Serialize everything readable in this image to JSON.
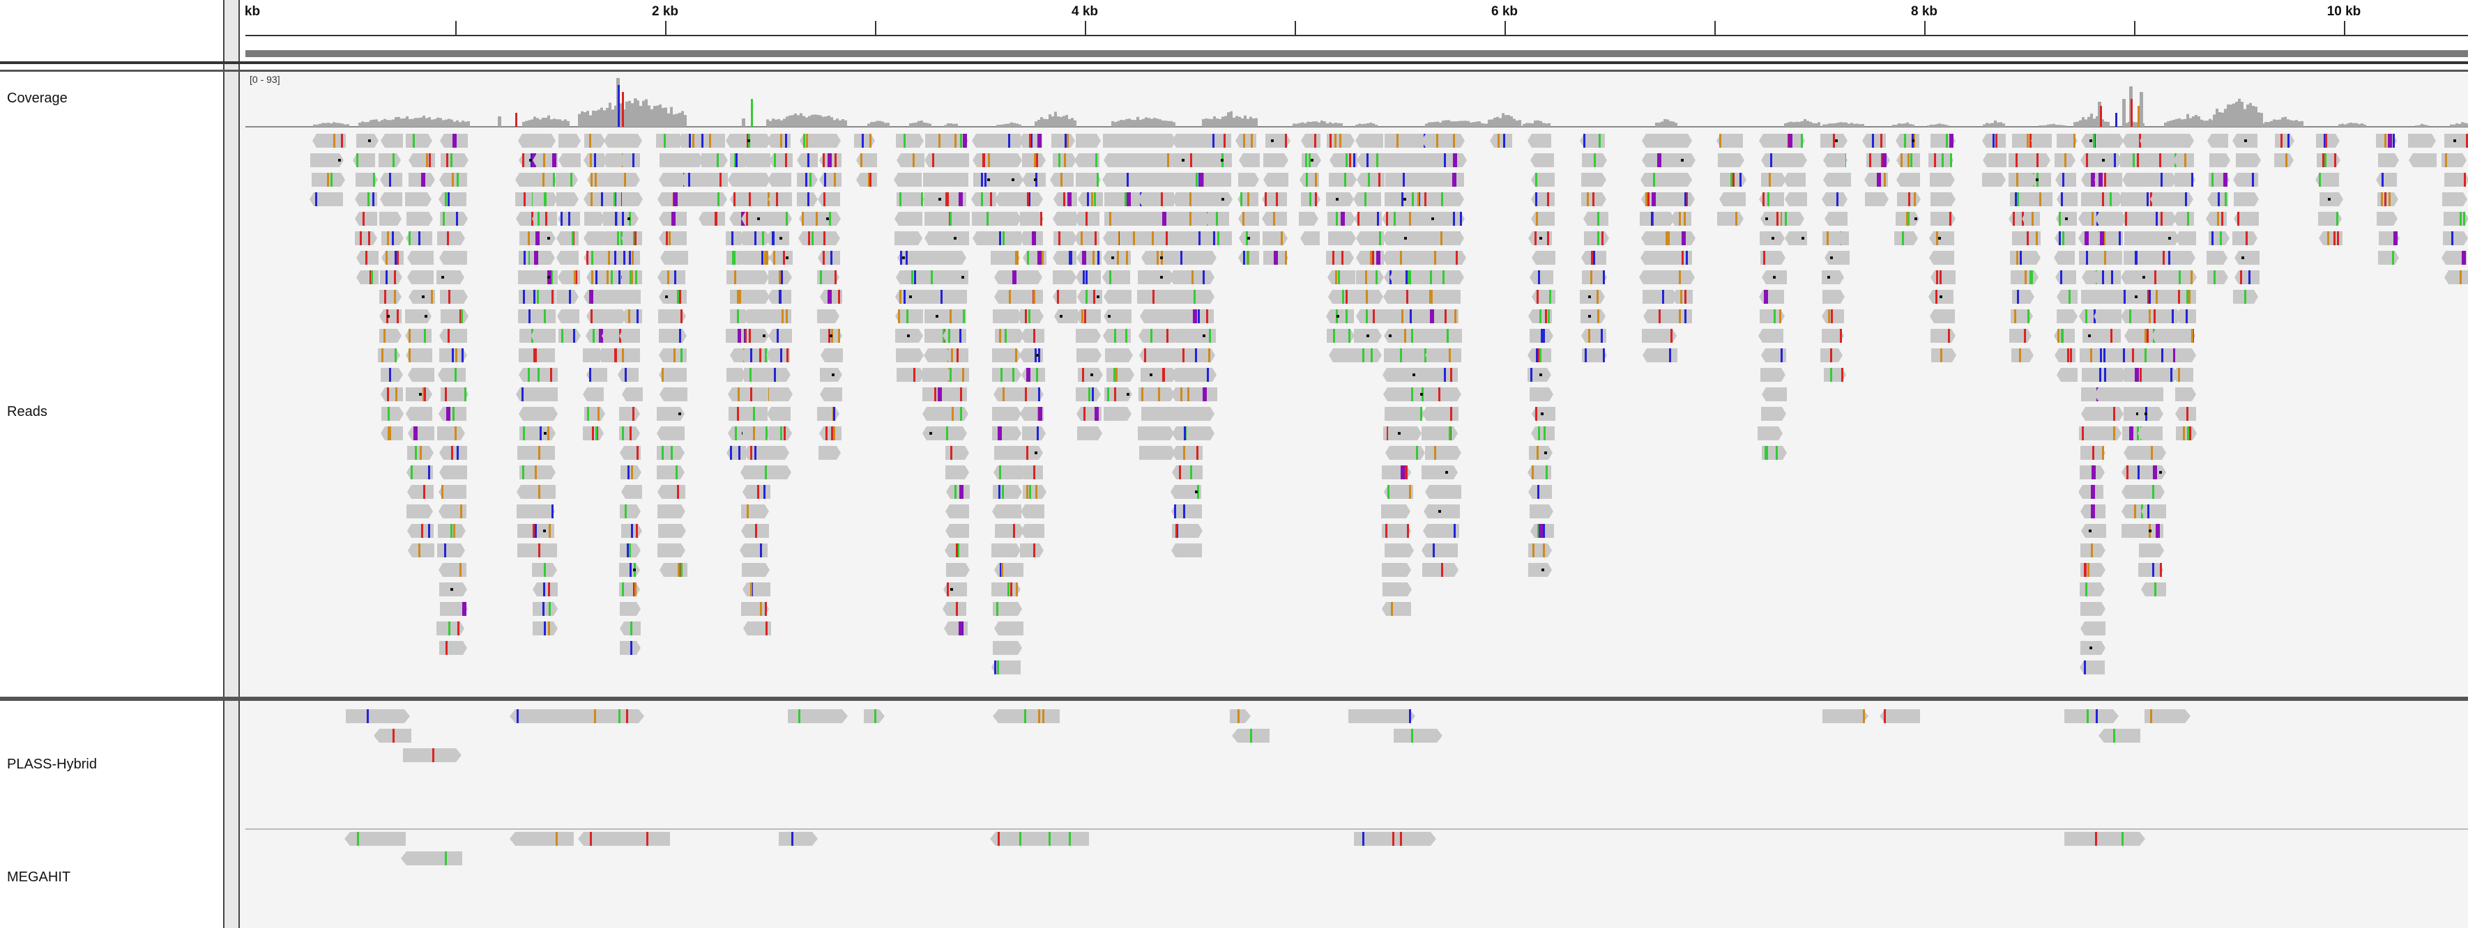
{
  "ruler": {
    "ticks": [
      {
        "label": "kb",
        "kb": 0
      },
      {
        "label": "",
        "kb": 1
      },
      {
        "label": "2 kb",
        "kb": 2
      },
      {
        "label": "",
        "kb": 3
      },
      {
        "label": "4 kb",
        "kb": 4
      },
      {
        "label": "",
        "kb": 5
      },
      {
        "label": "6 kb",
        "kb": 6
      },
      {
        "label": "",
        "kb": 7
      },
      {
        "label": "8 kb",
        "kb": 8
      },
      {
        "label": "",
        "kb": 9
      },
      {
        "label": "10 kb",
        "kb": 10
      }
    ]
  },
  "tracks": {
    "coverage": {
      "label": "Coverage",
      "range": "[0 - 93]"
    },
    "reads": {
      "label": "Reads"
    },
    "plass": {
      "label": "PLASS-Hybrid"
    },
    "megahit": {
      "label": "MEGAHIT"
    }
  },
  "colors": {
    "read_fill": "#c8c8c8",
    "coverage_fill": "#a8a8a8",
    "mismatch_A": "#33cc33",
    "mismatch_C": "#2222dd",
    "mismatch_G": "#d08a1a",
    "mismatch_T": "#dd2222",
    "insertion": "#8a0fb8"
  }
}
